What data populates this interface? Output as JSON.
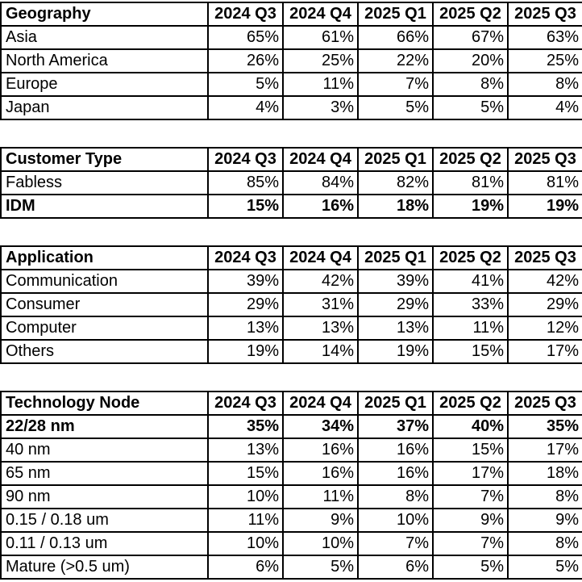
{
  "colors": {
    "border": "#000000",
    "text": "#000000",
    "background": "#ffffff"
  },
  "chart_data": [
    {
      "type": "table",
      "title": "Geography",
      "columns": [
        "2024 Q3",
        "2024 Q4",
        "2025 Q1",
        "2025 Q2",
        "2025 Q3"
      ],
      "rows": [
        {
          "label": "Asia",
          "bold": false,
          "values": [
            "65%",
            "61%",
            "66%",
            "67%",
            "63%"
          ]
        },
        {
          "label": "North America",
          "bold": false,
          "values": [
            "26%",
            "25%",
            "22%",
            "20%",
            "25%"
          ]
        },
        {
          "label": "Europe",
          "bold": false,
          "values": [
            "5%",
            "11%",
            "7%",
            "8%",
            "8%"
          ]
        },
        {
          "label": "Japan",
          "bold": false,
          "values": [
            "4%",
            "3%",
            "5%",
            "5%",
            "4%"
          ]
        }
      ]
    },
    {
      "type": "table",
      "title": "Customer Type",
      "columns": [
        "2024 Q3",
        "2024 Q4",
        "2025 Q1",
        "2025 Q2",
        "2025 Q3"
      ],
      "rows": [
        {
          "label": "Fabless",
          "bold": false,
          "values": [
            "85%",
            "84%",
            "82%",
            "81%",
            "81%"
          ]
        },
        {
          "label": "IDM",
          "bold": true,
          "values": [
            "15%",
            "16%",
            "18%",
            "19%",
            "19%"
          ]
        }
      ]
    },
    {
      "type": "table",
      "title": "Application",
      "columns": [
        "2024 Q3",
        "2024 Q4",
        "2025 Q1",
        "2025 Q2",
        "2025 Q3"
      ],
      "rows": [
        {
          "label": "Communication",
          "bold": false,
          "values": [
            "39%",
            "42%",
            "39%",
            "41%",
            "42%"
          ]
        },
        {
          "label": "Consumer",
          "bold": false,
          "values": [
            "29%",
            "31%",
            "29%",
            "33%",
            "29%"
          ]
        },
        {
          "label": "Computer",
          "bold": false,
          "values": [
            "13%",
            "13%",
            "13%",
            "11%",
            "12%"
          ]
        },
        {
          "label": "Others",
          "bold": false,
          "values": [
            "19%",
            "14%",
            "19%",
            "15%",
            "17%"
          ]
        }
      ]
    },
    {
      "type": "table",
      "title": "Technology Node",
      "columns": [
        "2024 Q3",
        "2024 Q4",
        "2025 Q1",
        "2025 Q2",
        "2025 Q3"
      ],
      "rows": [
        {
          "label": "22/28 nm",
          "bold": true,
          "values": [
            "35%",
            "34%",
            "37%",
            "40%",
            "35%"
          ]
        },
        {
          "label": "40 nm",
          "bold": false,
          "values": [
            "13%",
            "16%",
            "16%",
            "15%",
            "17%"
          ]
        },
        {
          "label": "65 nm",
          "bold": false,
          "values": [
            "15%",
            "16%",
            "16%",
            "17%",
            "18%"
          ]
        },
        {
          "label": "90 nm",
          "bold": false,
          "values": [
            "10%",
            "11%",
            "8%",
            "7%",
            "8%"
          ]
        },
        {
          "label": "0.15 / 0.18 um",
          "bold": false,
          "values": [
            "11%",
            "9%",
            "10%",
            "9%",
            "9%"
          ]
        },
        {
          "label": "0.11 / 0.13 um",
          "bold": false,
          "values": [
            "10%",
            "10%",
            "7%",
            "7%",
            "8%"
          ]
        },
        {
          "label": "Mature (>0.5 um)",
          "bold": false,
          "values": [
            "6%",
            "5%",
            "6%",
            "5%",
            "5%"
          ]
        }
      ]
    }
  ]
}
